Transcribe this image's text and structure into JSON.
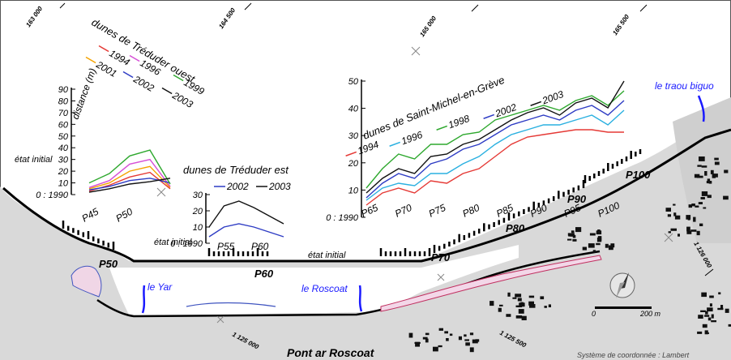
{
  "map": {
    "grid_labels_top": [
      "163 000",
      "164 500",
      "165 000",
      "165 500"
    ],
    "grid_labels_bottom": [
      "1 125 000",
      "1 125 500"
    ],
    "grid_label_right": "1 126 000",
    "places": {
      "le_traou_biguo": "le traou biguo",
      "le_yar": "le Yar",
      "le_roscoat": "le Roscoat",
      "pont_ar_roscoat": "Pont ar Roscoat"
    },
    "profile_labels": [
      "P50",
      "P60",
      "P70",
      "P80",
      "P90",
      "P100"
    ],
    "scale_bar": {
      "start": "0",
      "end": "200 m"
    },
    "coordinate_system": "Système de coordonnée : Lambert",
    "colors": {
      "water": "#1a1aff",
      "land": "#d9d9d9",
      "coast": "#000000"
    }
  },
  "chart_data": [
    {
      "type": "line",
      "title": "dunes de Tréduder ouest",
      "ylabel": "distance (m)",
      "yticks": [
        "90",
        "80",
        "70",
        "60",
        "50",
        "40",
        "30",
        "20",
        "10",
        "0 : 1990"
      ],
      "baseline_label": "état initial",
      "xticks": [
        "P45",
        "P50"
      ],
      "series": [
        {
          "name": "1994",
          "color": "#e53935",
          "values": [
            3,
            8,
            15,
            19,
            5
          ]
        },
        {
          "name": "2001",
          "color": "#f4a300",
          "values": [
            5,
            10,
            20,
            24,
            6
          ]
        },
        {
          "name": "1996",
          "color": "#d64fd6",
          "values": [
            6,
            12,
            26,
            30,
            7
          ]
        },
        {
          "name": "2002",
          "color": "#2e3cc4",
          "values": [
            4,
            7,
            12,
            14,
            10
          ]
        },
        {
          "name": "1999",
          "color": "#2ea82e",
          "values": [
            10,
            18,
            33,
            38,
            9
          ]
        },
        {
          "name": "2003",
          "color": "#111111",
          "values": [
            2,
            5,
            9,
            11,
            14
          ]
        }
      ]
    },
    {
      "type": "line",
      "title": "dunes de Tréduder est",
      "yticks": [
        "30",
        "20",
        "10",
        "0 : 1990"
      ],
      "baseline_label": "état initial",
      "xticks": [
        "P55",
        "P60"
      ],
      "series": [
        {
          "name": "2002",
          "color": "#2e3cc4",
          "values": [
            4,
            10,
            12,
            10,
            7,
            4
          ]
        },
        {
          "name": "2003",
          "color": "#111111",
          "values": [
            10,
            23,
            26,
            22,
            17,
            12
          ]
        }
      ]
    },
    {
      "type": "line",
      "title": "dunes de Saint-Michel-en-Grève",
      "yticks": [
        "50",
        "40",
        "30",
        "20",
        "10",
        "0 : 1990"
      ],
      "baseline_label": "état initial",
      "xticks": [
        "P65",
        "P70",
        "P75",
        "P80",
        "P85",
        "P90",
        "P95",
        "P100"
      ],
      "series": [
        {
          "name": "1994",
          "color": "#e53935",
          "values": [
            5,
            10,
            12,
            10,
            15,
            14,
            18,
            20,
            25,
            30,
            33,
            34,
            35,
            36,
            36,
            35,
            35
          ]
        },
        {
          "name": "1996",
          "color": "#2ab0e0",
          "values": [
            7,
            12,
            14,
            13,
            18,
            18,
            22,
            25,
            30,
            34,
            36,
            38,
            38,
            40,
            42,
            38,
            44
          ]
        },
        {
          "name": "1998",
          "color": "#2ea82e",
          "values": [
            12,
            20,
            26,
            24,
            30,
            30,
            34,
            35,
            40,
            42,
            44,
            46,
            44,
            48,
            50,
            46,
            52
          ]
        },
        {
          "name": "2002",
          "color": "#2e3cc4",
          "values": [
            8,
            14,
            18,
            16,
            22,
            24,
            28,
            30,
            34,
            38,
            40,
            42,
            40,
            44,
            46,
            42,
            48
          ]
        },
        {
          "name": "2003",
          "color": "#111111",
          "values": [
            10,
            16,
            20,
            18,
            25,
            26,
            30,
            32,
            36,
            40,
            43,
            45,
            42,
            47,
            49,
            45,
            56
          ]
        }
      ]
    }
  ]
}
